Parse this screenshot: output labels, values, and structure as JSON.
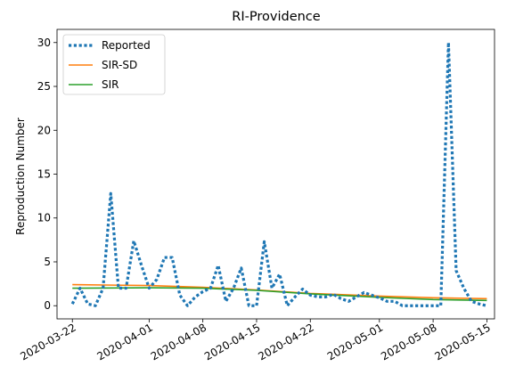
{
  "chart_data": {
    "type": "line",
    "title": "RI-Providence",
    "xlabel": "",
    "ylabel": "Reproduction Number",
    "x_start": "2020-03-22",
    "x_end": "2020-05-15",
    "xlim": [
      "2020-03-20",
      "2020-05-16"
    ],
    "ylim": [
      -1.5,
      31.5
    ],
    "y_ticks": [
      0,
      5,
      10,
      15,
      20,
      25,
      30
    ],
    "x_ticks": [
      "2020-03-22",
      "2020-04-01",
      "2020-04-08",
      "2020-04-15",
      "2020-04-22",
      "2020-05-01",
      "2020-05-08",
      "2020-05-15"
    ],
    "grid": false,
    "legend_position": "top-left",
    "series": [
      {
        "name": "Reported",
        "style": "dotted",
        "color": "#1f77b4",
        "values": [
          0.2,
          2.0,
          0.2,
          0.0,
          2.0,
          12.8,
          2.0,
          2.0,
          7.4,
          4.6,
          2.0,
          3.0,
          5.5,
          5.5,
          1.2,
          0.0,
          1.0,
          1.6,
          2.0,
          4.6,
          0.5,
          2.0,
          4.3,
          0.0,
          0.0,
          7.3,
          2.0,
          3.6,
          0.0,
          1.0,
          1.9,
          1.2,
          1.0,
          1.0,
          1.3,
          0.8,
          0.5,
          1.0,
          1.5,
          1.2,
          0.9,
          0.5,
          0.5,
          0.0,
          0.0,
          0.0,
          0.0,
          0.0,
          0.0,
          30.0,
          4.0,
          2.0,
          0.5,
          0.2,
          0.0
        ]
      },
      {
        "name": "SIR-SD",
        "style": "solid",
        "color": "#ff7f0e",
        "x_points": [
          "2020-03-22",
          "2020-04-01",
          "2020-04-08",
          "2020-04-15",
          "2020-04-22",
          "2020-05-01",
          "2020-05-08",
          "2020-05-15"
        ],
        "values": [
          2.4,
          2.3,
          2.1,
          1.8,
          1.4,
          1.1,
          0.9,
          0.8
        ]
      },
      {
        "name": "SIR",
        "style": "solid",
        "color": "#2ca02c",
        "x_points": [
          "2020-03-22",
          "2020-04-01",
          "2020-04-08",
          "2020-04-15",
          "2020-04-22",
          "2020-05-01",
          "2020-05-08",
          "2020-05-15"
        ],
        "values": [
          2.0,
          2.05,
          2.0,
          1.75,
          1.35,
          0.95,
          0.7,
          0.6
        ]
      }
    ]
  }
}
